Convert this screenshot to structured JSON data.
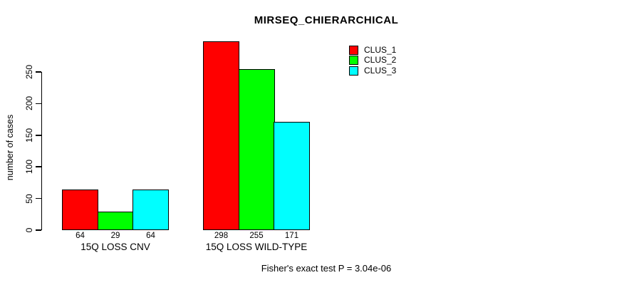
{
  "chart_data": {
    "type": "bar",
    "title": "MIRSEQ_CHIERARCHICAL",
    "ylabel": "number of cases",
    "xlabel": "",
    "categories": [
      "15Q LOSS CNV",
      "15Q LOSS WILD-TYPE"
    ],
    "series": [
      {
        "name": "CLUS_1",
        "color": "#ff0000",
        "values": [
          64,
          298
        ]
      },
      {
        "name": "CLUS_2",
        "color": "#00ff00",
        "values": [
          29,
          255
        ]
      },
      {
        "name": "CLUS_3",
        "color": "#00ffff",
        "values": [
          64,
          171
        ]
      }
    ],
    "bar_value_labels": [
      [
        64,
        29,
        64
      ],
      [
        298,
        255,
        171
      ]
    ],
    "yticks": [
      0,
      50,
      100,
      150,
      200,
      250
    ],
    "ylim": [
      0,
      310
    ],
    "grid": false,
    "legend_position": "top-right",
    "bar_border_color": "#000000",
    "annotation": "Fisher's exact test P = 3.04e-06"
  },
  "footer": {
    "text": "Fisher's exact test P = 3.04e-06"
  }
}
